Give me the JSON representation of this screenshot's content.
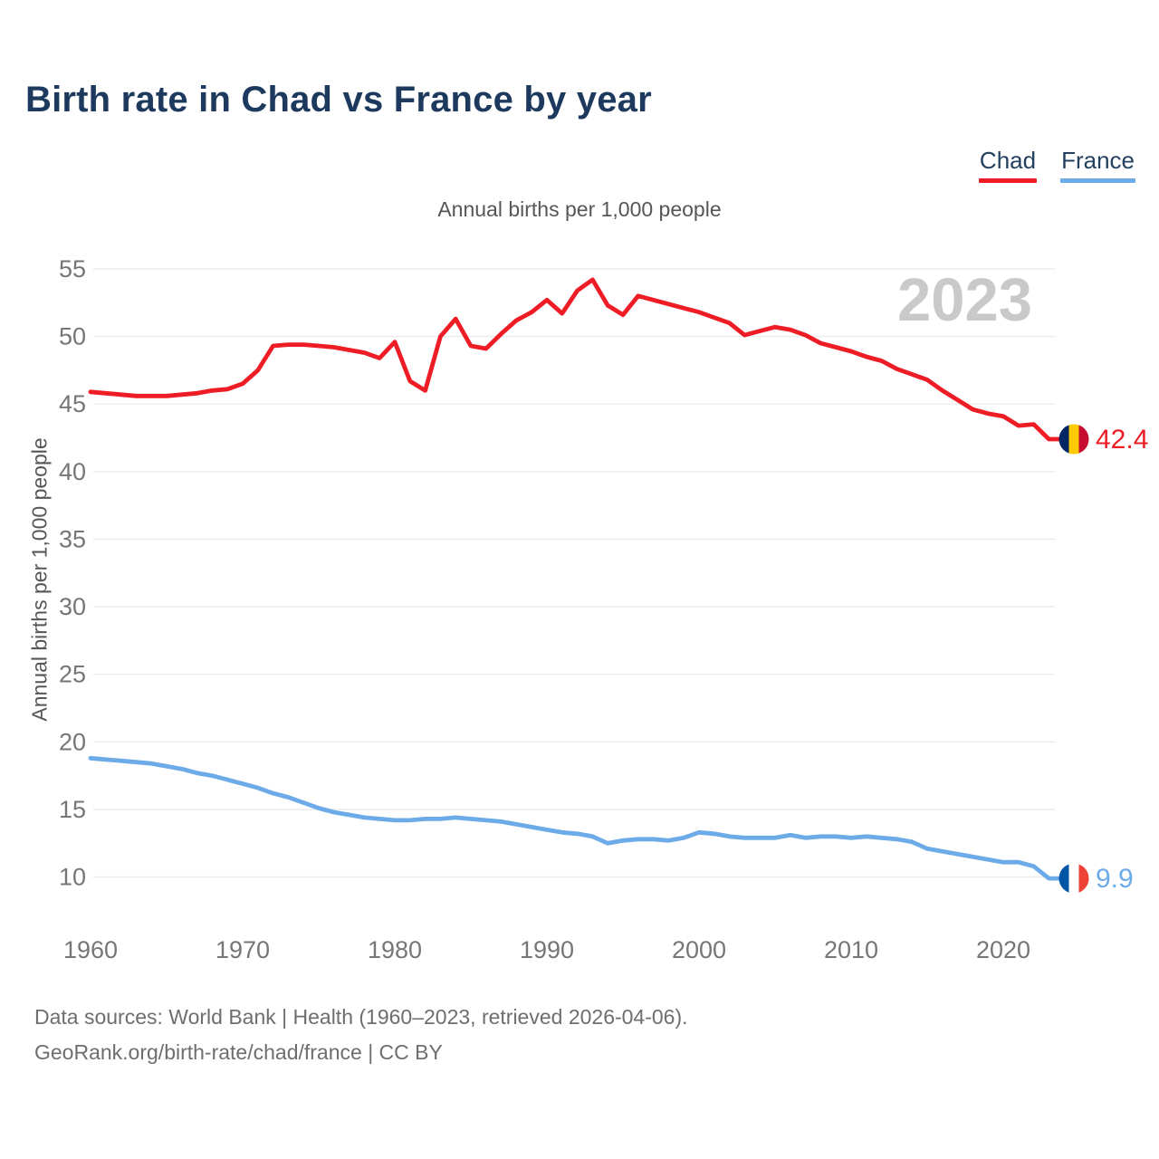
{
  "page": {
    "title": "Birth rate in Chad vs France by year",
    "subtitle": "Annual births per 1,000 people",
    "y_axis_label": "Annual births per 1,000 people",
    "watermark": "2023",
    "footer_line1": "Data sources: World Bank | Health (1960–2023, retrieved 2026-04-06).",
    "footer_line2": "GeoRank.org/birth-rate/chad/france | CC BY"
  },
  "legend": [
    {
      "label": "Chad",
      "color": "#ee1c25"
    },
    {
      "label": "France",
      "color": "#6cabe8"
    }
  ],
  "colors": {
    "chad_line": "#ee1c25",
    "france_line": "#6cabe8",
    "gridline": "#ececec",
    "tick_text": "#767676",
    "title_text": "#1d3a5e",
    "watermark_text": "#c9c9c9"
  },
  "chart_data": {
    "type": "line",
    "title": "Birth rate in Chad vs France by year",
    "subtitle": "Annual births per 1,000 people",
    "xlabel": "",
    "ylabel": "Annual births per 1,000 people",
    "x_start_year": 1960,
    "x_end_year": 2023,
    "x_ticks": [
      1960,
      1970,
      1980,
      1990,
      2000,
      2010,
      2020
    ],
    "y_ticks": [
      10,
      15,
      20,
      25,
      30,
      35,
      40,
      45,
      50,
      55
    ],
    "ylim": [
      8.5,
      56.5
    ],
    "grid": "horizontal",
    "legend_position": "top-right",
    "watermark": "2023",
    "series": [
      {
        "name": "Chad",
        "color": "#ee1c25",
        "end_label": "42.4",
        "flag_colors": [
          "#002664",
          "#FECB00",
          "#C60C30"
        ],
        "values": [
          45.9,
          45.8,
          45.7,
          45.6,
          45.6,
          45.6,
          45.7,
          45.8,
          46.0,
          46.1,
          46.5,
          47.5,
          49.3,
          49.4,
          49.4,
          49.3,
          49.2,
          49.0,
          48.8,
          48.4,
          49.6,
          46.7,
          46.0,
          50.0,
          51.3,
          49.3,
          49.1,
          50.2,
          51.2,
          51.8,
          52.7,
          51.7,
          53.4,
          54.2,
          52.3,
          51.6,
          53.0,
          52.7,
          52.4,
          52.1,
          51.8,
          51.4,
          51.0,
          50.1,
          50.4,
          50.7,
          50.5,
          50.1,
          49.5,
          49.2,
          48.9,
          48.5,
          48.2,
          47.6,
          47.2,
          46.8,
          46.0,
          45.3,
          44.6,
          44.3,
          44.1,
          43.4,
          43.5,
          42.4
        ]
      },
      {
        "name": "France",
        "color": "#6cabe8",
        "end_label": "9.9",
        "flag_colors": [
          "#0055A4",
          "#FFFFFF",
          "#EF4135"
        ],
        "values": [
          18.8,
          18.7,
          18.6,
          18.5,
          18.4,
          18.2,
          18.0,
          17.7,
          17.5,
          17.2,
          16.9,
          16.6,
          16.2,
          15.9,
          15.5,
          15.1,
          14.8,
          14.6,
          14.4,
          14.3,
          14.2,
          14.2,
          14.3,
          14.3,
          14.4,
          14.3,
          14.2,
          14.1,
          13.9,
          13.7,
          13.5,
          13.3,
          13.2,
          13.0,
          12.5,
          12.7,
          12.8,
          12.8,
          12.7,
          12.9,
          13.3,
          13.2,
          13.0,
          12.9,
          12.9,
          12.9,
          13.1,
          12.9,
          13.0,
          13.0,
          12.9,
          13.0,
          12.9,
          12.8,
          12.6,
          12.1,
          11.9,
          11.7,
          11.5,
          11.3,
          11.1,
          11.1,
          10.8,
          9.9
        ]
      }
    ]
  }
}
